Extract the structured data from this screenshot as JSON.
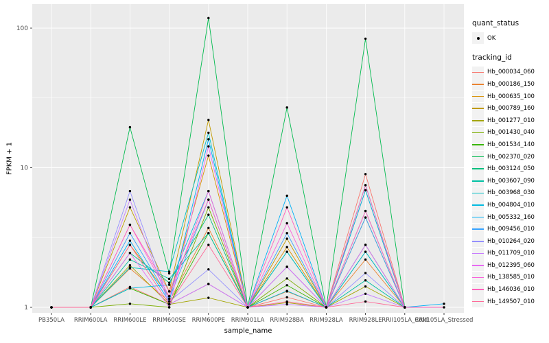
{
  "figure": {
    "x_axis_title": "sample_name",
    "y_axis_title": "FPKM + 1"
  },
  "legend": {
    "quant_title": "quant_status",
    "quant_items": [
      {
        "label": "OK",
        "marker": "point-icon",
        "color": "#000000"
      }
    ],
    "tracking_title": "tracking_id"
  },
  "colors": {
    "panel_background": "#EBEBEB",
    "gridline": "#FFFFFF",
    "tick": "#333333",
    "tick_label": "#4D4D4D",
    "point": "#000000",
    "legend_key_background": "#F2F2F2"
  },
  "chart_data": {
    "type": "line",
    "title": "",
    "xlabel": "sample_name",
    "ylabel": "FPKM + 1",
    "y_scale": "log10",
    "ylim": [
      0.91,
      149
    ],
    "y_ticks": [
      1,
      10,
      100
    ],
    "y_minor_ticks": [
      3.162,
      31.62
    ],
    "grid": "on",
    "legend_position": "right",
    "point_marker": "black dot on every observed value",
    "x_categories": [
      "PB350LA",
      "RRIM600LA",
      "RRIM600LE",
      "RRIM600SE",
      "RRIM600PE",
      "RRIM901LA",
      "RRIM928BA",
      "RRIM928LA",
      "RRIM928LE",
      "RRII105LA_Cold",
      "RRII105LA_Stressed"
    ],
    "series": [
      {
        "name": "Hb_000034_060",
        "color": "#F8766D",
        "values": [
          1,
          1,
          1.4,
          1.05,
          1.47,
          1,
          1.18,
          1,
          9.0,
          1,
          null
        ]
      },
      {
        "name": "Hb_000186_150",
        "color": "#EA8331",
        "values": [
          1,
          1,
          1.9,
          1.1,
          3.7,
          1,
          1.3,
          1,
          2.2,
          1,
          null
        ]
      },
      {
        "name": "Hb_000635_100",
        "color": "#D89000",
        "values": [
          1,
          1,
          2.8,
          1.2,
          12.2,
          1,
          2.7,
          1,
          4.4,
          1,
          null
        ]
      },
      {
        "name": "Hb_000789_160",
        "color": "#C09B00",
        "values": [
          1,
          1,
          5.2,
          1.3,
          22.0,
          1,
          3.1,
          1,
          6.9,
          1,
          null
        ]
      },
      {
        "name": "Hb_001277_010",
        "color": "#A3A500",
        "values": [
          1,
          1,
          2.0,
          1.05,
          1.17,
          1,
          1.08,
          1,
          1.41,
          1,
          null
        ]
      },
      {
        "name": "Hb_001430_040",
        "color": "#7CAE00",
        "values": [
          1,
          1,
          1.06,
          1.0,
          5.2,
          1,
          1.61,
          1,
          4.9,
          1,
          null
        ]
      },
      {
        "name": "Hb_001534_140",
        "color": "#39B600",
        "values": [
          1,
          1,
          1.37,
          1.05,
          3.4,
          1,
          1.44,
          1,
          2.5,
          1,
          null
        ]
      },
      {
        "name": "Hb_002370_020",
        "color": "#00BB4E",
        "values": [
          1,
          1,
          19.5,
          1.75,
          118,
          1,
          27.0,
          1,
          84.0,
          1,
          null
        ]
      },
      {
        "name": "Hb_003124_050",
        "color": "#00BF7D",
        "values": [
          1,
          1,
          2.45,
          1.5,
          4.6,
          1,
          2.5,
          1,
          2.8,
          1,
          null
        ]
      },
      {
        "name": "Hb_003607_090",
        "color": "#00C1A3",
        "values": [
          1,
          1,
          2.2,
          1.6,
          3.4,
          1,
          1.95,
          1,
          1.56,
          1,
          null
        ]
      },
      {
        "name": "Hb_003968_030",
        "color": "#00BFC4",
        "values": [
          1,
          1,
          1.93,
          1.8,
          17.8,
          1,
          2.5,
          1,
          7.5,
          1,
          null
        ]
      },
      {
        "name": "Hb_004804_010",
        "color": "#00BAE0",
        "values": [
          1,
          1,
          1.37,
          1.45,
          6.8,
          1,
          1.31,
          1,
          2.5,
          1,
          null
        ]
      },
      {
        "name": "Hb_005332_160",
        "color": "#00B0F6",
        "values": [
          1,
          1,
          3.0,
          1.1,
          16.0,
          1,
          6.3,
          1,
          6.9,
          1,
          1.06
        ]
      },
      {
        "name": "Hb_009456_010",
        "color": "#35A2FF",
        "values": [
          1,
          1,
          3.4,
          1.15,
          5.9,
          1,
          3.4,
          1,
          4.4,
          1,
          null
        ]
      },
      {
        "name": "Hb_010264_020",
        "color": "#9590FF",
        "values": [
          1,
          1,
          6.8,
          1.1,
          1.87,
          1,
          1.95,
          1,
          1.76,
          1,
          null
        ]
      },
      {
        "name": "Hb_011709_010",
        "color": "#C77CFF",
        "values": [
          1,
          1,
          5.9,
          1.05,
          1.47,
          1,
          1.05,
          1,
          1.25,
          1,
          null
        ]
      },
      {
        "name": "Hb_012395_060",
        "color": "#E76BF3",
        "values": [
          1,
          1,
          2.45,
          1.0,
          14.2,
          1,
          1.95,
          1,
          2.8,
          1,
          null
        ]
      },
      {
        "name": "Hb_138585_010",
        "color": "#FA62DB",
        "values": [
          1,
          1,
          3.9,
          1.2,
          6.8,
          1,
          4.0,
          1,
          4.9,
          1,
          null
        ]
      },
      {
        "name": "Hb_146036_010",
        "color": "#FF62BC",
        "values": [
          1,
          1,
          3.9,
          1.3,
          5.9,
          1,
          5.2,
          1,
          7.5,
          1,
          1.0
        ]
      },
      {
        "name": "Hb_149507_010",
        "color": "#FF6A98",
        "values": [
          1,
          1,
          2.8,
          1.05,
          2.8,
          1,
          1.1,
          1,
          1.1,
          1,
          null
        ]
      }
    ]
  }
}
